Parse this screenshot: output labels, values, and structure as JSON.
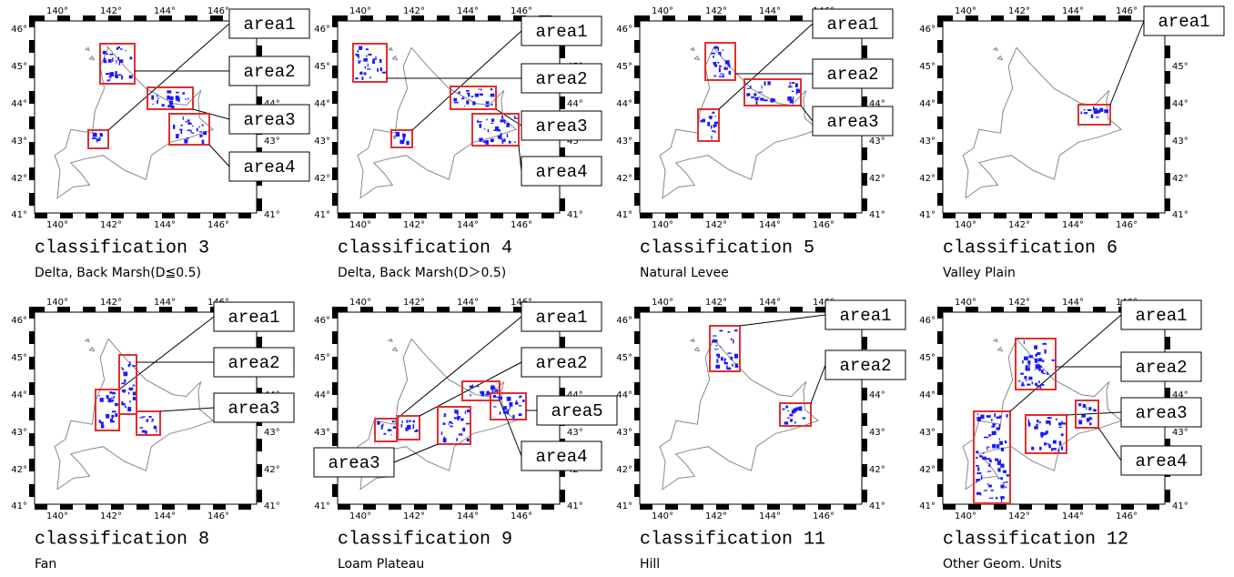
{
  "axes": {
    "lon_labels": [
      "140°",
      "142°",
      "144°",
      "146°"
    ],
    "lat_labels": [
      "46°",
      "45°",
      "44°",
      "43°",
      "42°",
      "41°"
    ]
  },
  "panels": [
    {
      "title": "classification 3",
      "subtitle": "Delta, Back Marsh(D≦0.5)",
      "areas": [
        "area1",
        "area2",
        "area3",
        "area4"
      ]
    },
    {
      "title": "classification 4",
      "subtitle": "Delta, Back Marsh(D＞0.5)",
      "areas": [
        "area1",
        "area2",
        "area3",
        "area4"
      ]
    },
    {
      "title": "classification 5",
      "subtitle": "Natural Levee",
      "areas": [
        "area1",
        "area2",
        "area3"
      ]
    },
    {
      "title": "classification 6",
      "subtitle": "Valley Plain",
      "areas": [
        "area1"
      ]
    },
    {
      "title": "classification 8",
      "subtitle": "Fan",
      "areas": [
        "area1",
        "area2",
        "area3"
      ]
    },
    {
      "title": "classification 9",
      "subtitle": "Loam Plateau",
      "areas": [
        "area1",
        "area2",
        "area3",
        "area4",
        "area5"
      ]
    },
    {
      "title": "classification 11",
      "subtitle": "Hill",
      "areas": [
        "area1",
        "area2"
      ]
    },
    {
      "title": "classification 12",
      "subtitle": "Other Geom. Units",
      "areas": [
        "area1",
        "area2",
        "area3",
        "area4"
      ]
    }
  ]
}
